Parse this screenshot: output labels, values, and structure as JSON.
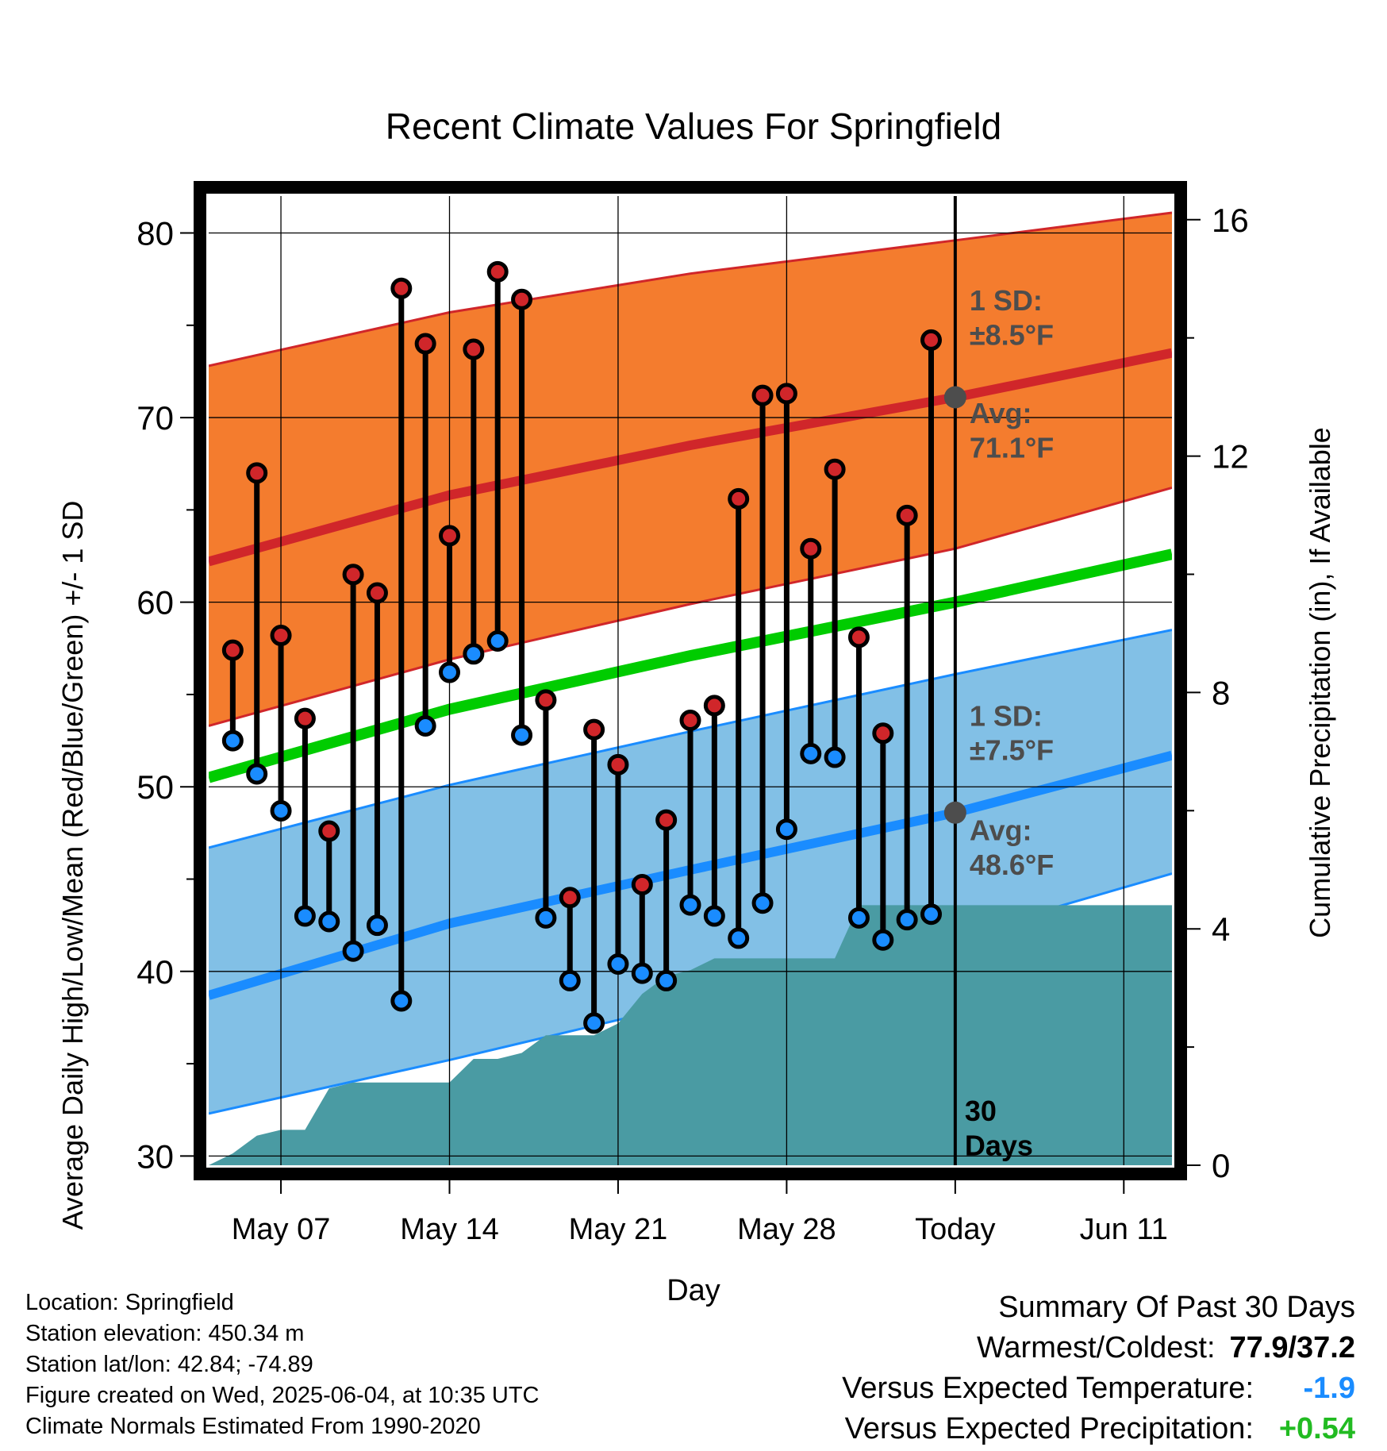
{
  "chart_data": {
    "type": "line",
    "title": "Recent Climate Values For Springfield",
    "xlabel": "Day",
    "ylabel": "Average Daily High/Low/Mean (Red/Blue/Green) +/- 1 SD",
    "y2label": "Cumulative Precipitation (in), If Available",
    "ylim": [
      29.5,
      82
    ],
    "y_ticks": [
      30,
      40,
      50,
      60,
      70,
      80
    ],
    "y2lim": [
      0,
      16.4
    ],
    "y2_ticks": [
      0,
      4,
      8,
      12
    ],
    "xlim": [
      "2025-05-04",
      "2025-06-13"
    ],
    "x_ticks": [
      {
        "date": "2025-05-07",
        "label": "May 07"
      },
      {
        "date": "2025-05-14",
        "label": "May 14"
      },
      {
        "date": "2025-05-21",
        "label": "May 21"
      },
      {
        "date": "2025-05-28",
        "label": "May 28"
      },
      {
        "date": "2025-06-04",
        "label": "Today"
      },
      {
        "date": "2025-06-11",
        "label": "Jun 11"
      }
    ],
    "today": "2025-06-04",
    "days_label": "30\nDays",
    "normals": {
      "dates": [
        "2025-05-04",
        "2025-05-14",
        "2025-05-24",
        "2025-06-04",
        "2025-06-13"
      ],
      "high_avg": [
        62.2,
        65.8,
        68.5,
        71.1,
        73.5
      ],
      "high_sd_upper": [
        72.8,
        75.7,
        77.8,
        79.6,
        81.1
      ],
      "high_sd_lower": [
        53.3,
        56.9,
        59.9,
        62.9,
        66.2
      ],
      "mean_avg": [
        50.5,
        54.2,
        57.1,
        60.0,
        62.6
      ],
      "low_avg": [
        38.7,
        42.6,
        45.5,
        48.6,
        51.7
      ],
      "low_sd_upper": [
        46.7,
        50.1,
        53.0,
        56.1,
        58.5
      ],
      "low_sd_lower": [
        32.3,
        35.2,
        38.3,
        41.9,
        45.3
      ],
      "high_sd_text": "1 SD:\n±8.5°F",
      "high_avg_text": "Avg:\n71.1°F",
      "low_sd_text": "1 SD:\n±7.5°F",
      "low_avg_text": "Avg:\n48.6°F"
    },
    "observations": {
      "dates": [
        "2025-05-05",
        "2025-05-06",
        "2025-05-07",
        "2025-05-08",
        "2025-05-09",
        "2025-05-10",
        "2025-05-11",
        "2025-05-12",
        "2025-05-13",
        "2025-05-14",
        "2025-05-15",
        "2025-05-16",
        "2025-05-17",
        "2025-05-18",
        "2025-05-19",
        "2025-05-20",
        "2025-05-21",
        "2025-05-22",
        "2025-05-23",
        "2025-05-24",
        "2025-05-25",
        "2025-05-26",
        "2025-05-27",
        "2025-05-28",
        "2025-05-29",
        "2025-05-30",
        "2025-05-31",
        "2025-06-01",
        "2025-06-02",
        "2025-06-03"
      ],
      "highs": [
        57.4,
        67.0,
        58.2,
        53.7,
        47.6,
        61.5,
        60.5,
        77.0,
        74.0,
        63.6,
        73.7,
        77.9,
        76.4,
        54.7,
        44.0,
        53.1,
        51.2,
        44.7,
        48.2,
        53.6,
        54.4,
        65.6,
        71.2,
        71.3,
        62.9,
        67.2,
        58.1,
        52.9,
        64.7,
        74.2
      ],
      "lows": [
        52.5,
        50.7,
        48.7,
        43.0,
        42.7,
        41.1,
        42.5,
        38.4,
        53.3,
        56.2,
        57.2,
        57.9,
        52.8,
        42.9,
        39.5,
        37.2,
        40.4,
        39.9,
        39.5,
        43.6,
        43.0,
        41.8,
        43.7,
        47.7,
        51.8,
        51.6,
        42.9,
        41.7,
        42.8,
        43.1
      ]
    },
    "precipitation": {
      "dates": [
        "2025-05-04",
        "2025-05-05",
        "2025-05-06",
        "2025-05-07",
        "2025-05-08",
        "2025-05-09",
        "2025-05-10",
        "2025-05-11",
        "2025-05-12",
        "2025-05-13",
        "2025-05-14",
        "2025-05-15",
        "2025-05-16",
        "2025-05-17",
        "2025-05-18",
        "2025-05-19",
        "2025-05-20",
        "2025-05-21",
        "2025-05-22",
        "2025-05-23",
        "2025-05-24",
        "2025-05-25",
        "2025-05-26",
        "2025-05-27",
        "2025-05-28",
        "2025-05-29",
        "2025-05-30",
        "2025-05-31",
        "2025-06-01",
        "2025-06-13"
      ],
      "cumulative": [
        0.0,
        0.2,
        0.5,
        0.6,
        0.6,
        1.3,
        1.4,
        1.4,
        1.4,
        1.4,
        1.4,
        1.8,
        1.8,
        1.9,
        2.2,
        2.2,
        2.2,
        2.4,
        2.9,
        3.2,
        3.3,
        3.5,
        3.5,
        3.5,
        3.5,
        3.5,
        3.5,
        4.4,
        4.4,
        4.4
      ]
    },
    "colors": {
      "high_band": "#f47c2e",
      "high_line": "#d0262a",
      "mean_line": "#00cc00",
      "low_band": "#82c0e6",
      "low_line": "#1a8cff",
      "precip": "#4a9ba3",
      "high_marker": "#d0262a",
      "low_marker": "#1a8cff",
      "annotation": "#4d4d4d"
    },
    "grid": true
  },
  "footer": {
    "location": "Location: Springfield",
    "elevation": "Station elevation: 450.34 m",
    "latlon": "Station lat/lon: 42.84; -74.89",
    "created": "Figure created on Wed, 2025-06-04, at 10:35 UTC",
    "normals": "Climate Normals Estimated From 1990-2020"
  },
  "summary": {
    "title": "Summary Of Past 30 Days",
    "warm_cold_label": "Warmest/Coldest:",
    "warm_cold_value": "77.9/37.2",
    "temp_label": "Versus Expected Temperature:",
    "temp_value": "-1.9",
    "temp_color": "#1a8cff",
    "precip_label": "Versus Expected Precipitation:",
    "precip_value": "+0.54",
    "precip_color": "#22bb22"
  }
}
